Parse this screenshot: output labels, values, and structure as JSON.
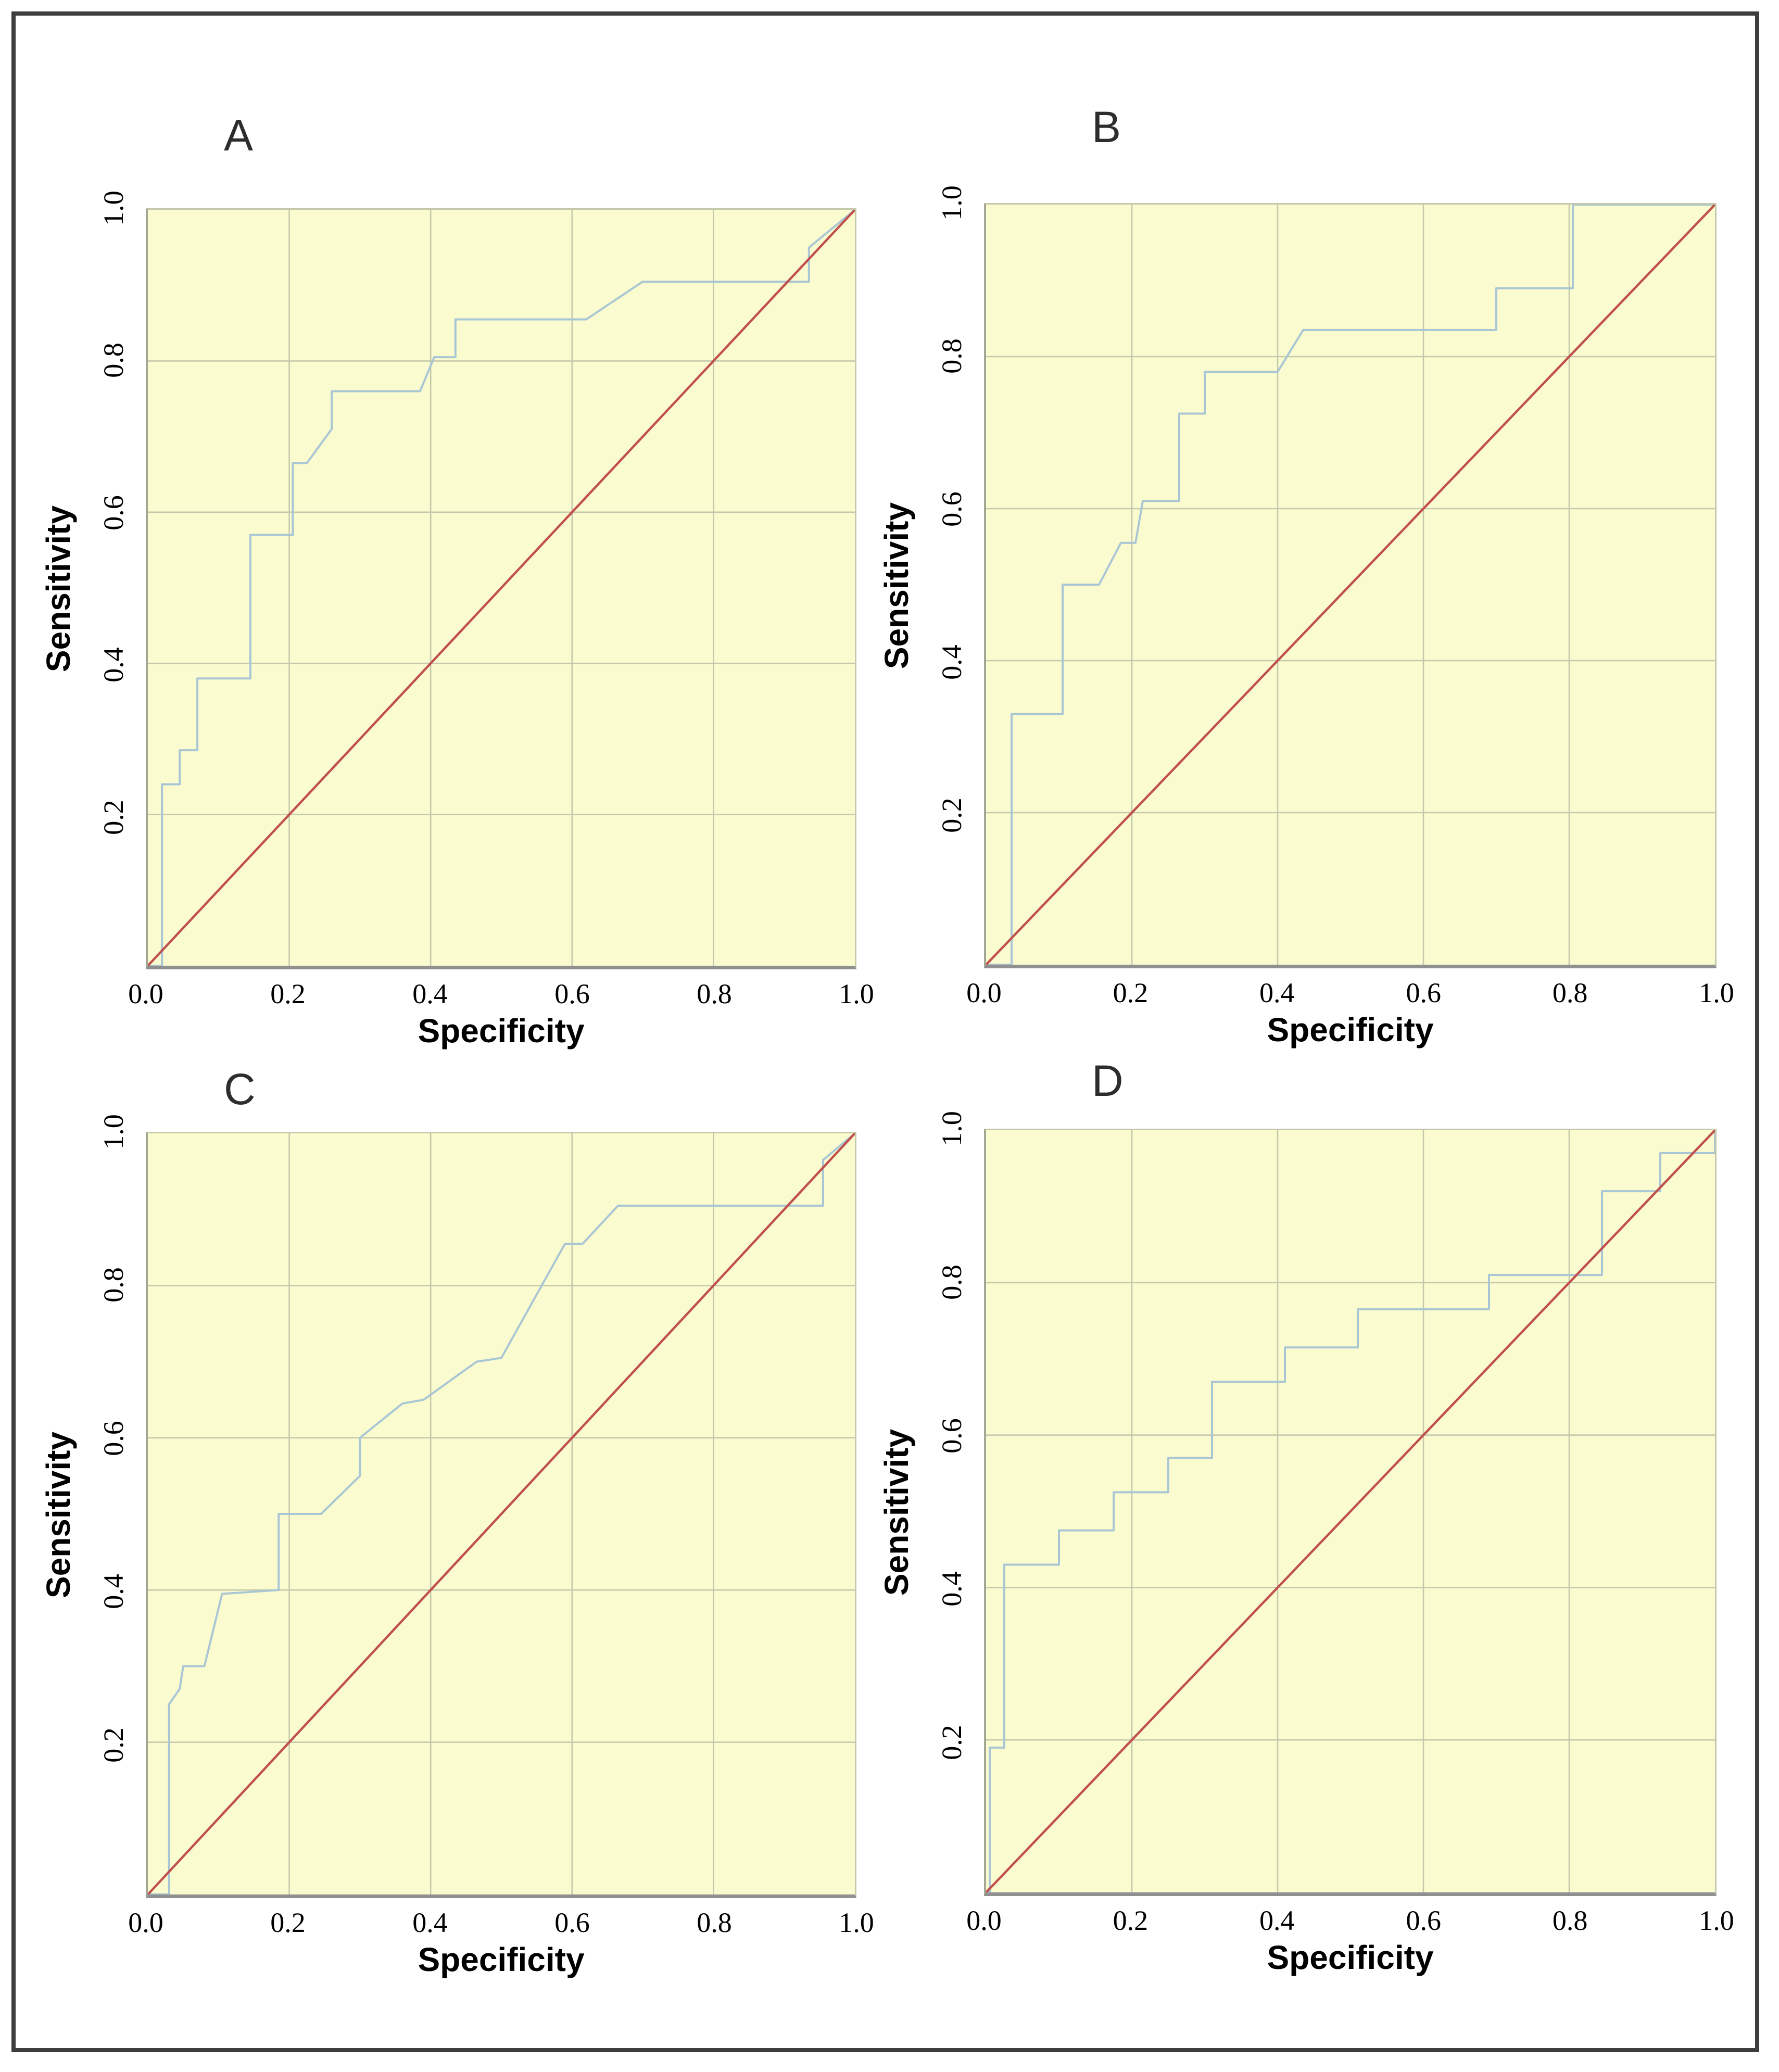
{
  "figure": {
    "type": "roc-curve-grid",
    "panels": [
      "A",
      "B",
      "C",
      "D"
    ],
    "border_color": "#3d3d3d",
    "background_color": "#ffffff"
  },
  "styles": {
    "plot_background": "#fbfbd0",
    "grid_color": "#c4c9ac",
    "left_axis_color": "#a3a896",
    "bottom_axis_color": "#909090",
    "roc_line_color": "#a9c6d4",
    "diagonal_color": "#c0504d",
    "text_color": "#000000",
    "panel_letter_color": "#2d2d2d"
  },
  "chart_data": [
    {
      "type": "line",
      "panel_label": "A",
      "xlabel": "Specificity",
      "ylabel": "Sensitivity",
      "xlim": [
        0.0,
        1.0
      ],
      "ylim": [
        0.0,
        1.0
      ],
      "xticks": [
        "0.0",
        "0.2",
        "0.4",
        "0.6",
        "0.8",
        "1.0"
      ],
      "yticks": [
        "1.0",
        "0.8",
        "0.6",
        "0.4",
        "0.2"
      ],
      "grid": true,
      "legend": "none",
      "series": [
        {
          "name": "ROC curve",
          "color": "#a9c6d4",
          "points": [
            [
              0,
              0
            ],
            [
              0.02,
              0
            ],
            [
              0.02,
              0.24
            ],
            [
              0.045,
              0.24
            ],
            [
              0.045,
              0.285
            ],
            [
              0.07,
              0.285
            ],
            [
              0.07,
              0.38
            ],
            [
              0.145,
              0.38
            ],
            [
              0.145,
              0.57
            ],
            [
              0.205,
              0.57
            ],
            [
              0.205,
              0.665
            ],
            [
              0.225,
              0.665
            ],
            [
              0.26,
              0.71
            ],
            [
              0.26,
              0.76
            ],
            [
              0.385,
              0.76
            ],
            [
              0.405,
              0.805
            ],
            [
              0.435,
              0.805
            ],
            [
              0.435,
              0.855
            ],
            [
              0.62,
              0.855
            ],
            [
              0.7,
              0.905
            ],
            [
              0.935,
              0.905
            ],
            [
              0.935,
              0.95
            ],
            [
              1,
              1
            ]
          ]
        },
        {
          "name": "reference diagonal",
          "color": "#c0504d",
          "points": [
            [
              0,
              0
            ],
            [
              1,
              1
            ]
          ]
        }
      ]
    },
    {
      "type": "line",
      "panel_label": "B",
      "xlabel": "Specificity",
      "ylabel": "Sensitivity",
      "xlim": [
        0.0,
        1.0
      ],
      "ylim": [
        0.0,
        1.0
      ],
      "xticks": [
        "0.0",
        "0.2",
        "0.4",
        "0.6",
        "0.8",
        "1.0"
      ],
      "yticks": [
        "1.0",
        "0.8",
        "0.6",
        "0.4",
        "0.2"
      ],
      "grid": true,
      "legend": "none",
      "series": [
        {
          "name": "ROC curve",
          "color": "#a9c6d4",
          "points": [
            [
              0,
              0
            ],
            [
              0.035,
              0
            ],
            [
              0.035,
              0.33
            ],
            [
              0.105,
              0.33
            ],
            [
              0.105,
              0.5
            ],
            [
              0.155,
              0.5
            ],
            [
              0.185,
              0.555
            ],
            [
              0.205,
              0.555
            ],
            [
              0.215,
              0.61
            ],
            [
              0.265,
              0.61
            ],
            [
              0.265,
              0.725
            ],
            [
              0.3,
              0.725
            ],
            [
              0.3,
              0.78
            ],
            [
              0.4,
              0.78
            ],
            [
              0.435,
              0.835
            ],
            [
              0.7,
              0.835
            ],
            [
              0.7,
              0.89
            ],
            [
              0.805,
              0.89
            ],
            [
              0.805,
              1.0
            ],
            [
              1,
              1
            ]
          ]
        },
        {
          "name": "reference diagonal",
          "color": "#c0504d",
          "points": [
            [
              0,
              0
            ],
            [
              1,
              1
            ]
          ]
        }
      ]
    },
    {
      "type": "line",
      "panel_label": "C",
      "xlabel": "Specificity",
      "ylabel": "Sensitivity",
      "xlim": [
        0.0,
        1.0
      ],
      "ylim": [
        0.0,
        1.0
      ],
      "xticks": [
        "0.0",
        "0.2",
        "0.4",
        "0.6",
        "0.8",
        "1.0"
      ],
      "yticks": [
        "1.0",
        "0.8",
        "0.6",
        "0.4",
        "0.2"
      ],
      "grid": true,
      "legend": "none",
      "series": [
        {
          "name": "ROC curve",
          "color": "#a9c6d4",
          "points": [
            [
              0,
              0
            ],
            [
              0.03,
              0
            ],
            [
              0.03,
              0.25
            ],
            [
              0.045,
              0.27
            ],
            [
              0.05,
              0.3
            ],
            [
              0.08,
              0.3
            ],
            [
              0.105,
              0.395
            ],
            [
              0.185,
              0.4
            ],
            [
              0.185,
              0.5
            ],
            [
              0.245,
              0.5
            ],
            [
              0.3,
              0.55
            ],
            [
              0.3,
              0.6
            ],
            [
              0.36,
              0.645
            ],
            [
              0.39,
              0.65
            ],
            [
              0.465,
              0.7
            ],
            [
              0.5,
              0.705
            ],
            [
              0.59,
              0.855
            ],
            [
              0.615,
              0.855
            ],
            [
              0.665,
              0.905
            ],
            [
              0.955,
              0.905
            ],
            [
              0.955,
              0.965
            ],
            [
              1,
              1
            ]
          ]
        },
        {
          "name": "reference diagonal",
          "color": "#c0504d",
          "points": [
            [
              0,
              0
            ],
            [
              1,
              1
            ]
          ]
        }
      ]
    },
    {
      "type": "line",
      "panel_label": "D",
      "xlabel": "Specificity",
      "ylabel": "Sensitivity",
      "xlim": [
        0.0,
        1.0
      ],
      "ylim": [
        0.0,
        1.0
      ],
      "xticks": [
        "0.0",
        "0.2",
        "0.4",
        "0.6",
        "0.8",
        "1.0"
      ],
      "yticks": [
        "1.0",
        "0.8",
        "0.6",
        "0.4",
        "0.2"
      ],
      "grid": true,
      "legend": "none",
      "series": [
        {
          "name": "ROC curve",
          "color": "#a9c6d4",
          "points": [
            [
              0,
              0
            ],
            [
              0.005,
              0
            ],
            [
              0.005,
              0.19
            ],
            [
              0.025,
              0.19
            ],
            [
              0.025,
              0.43
            ],
            [
              0.1,
              0.43
            ],
            [
              0.1,
              0.475
            ],
            [
              0.175,
              0.475
            ],
            [
              0.175,
              0.525
            ],
            [
              0.25,
              0.525
            ],
            [
              0.25,
              0.57
            ],
            [
              0.31,
              0.57
            ],
            [
              0.31,
              0.67
            ],
            [
              0.41,
              0.67
            ],
            [
              0.41,
              0.715
            ],
            [
              0.51,
              0.715
            ],
            [
              0.51,
              0.765
            ],
            [
              0.69,
              0.765
            ],
            [
              0.69,
              0.81
            ],
            [
              0.845,
              0.81
            ],
            [
              0.845,
              0.92
            ],
            [
              0.925,
              0.92
            ],
            [
              0.925,
              0.97
            ],
            [
              1,
              0.97
            ],
            [
              1,
              1
            ]
          ]
        },
        {
          "name": "reference diagonal",
          "color": "#c0504d",
          "points": [
            [
              0,
              0
            ],
            [
              1,
              1
            ]
          ]
        }
      ]
    }
  ]
}
